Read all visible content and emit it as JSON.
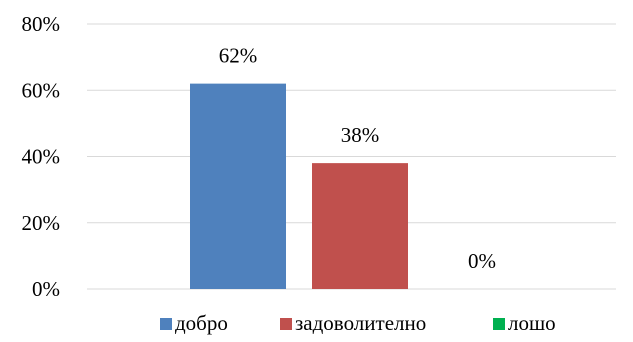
{
  "chart_data": {
    "type": "bar",
    "categories": [
      "добро",
      "задоволително",
      "лошо"
    ],
    "values": [
      62,
      38,
      0
    ],
    "data_labels": [
      "62%",
      "38%",
      "0%"
    ],
    "colors": [
      "#4f81bd",
      "#c0504d",
      "#00b050"
    ],
    "ylim": [
      0,
      80
    ],
    "yticks": [
      0,
      20,
      40,
      60,
      80
    ],
    "ytick_labels": [
      "0%",
      "20%",
      "40%",
      "60%",
      "80%"
    ],
    "title": "",
    "xlabel": "",
    "ylabel": "",
    "grid": true,
    "legend": "bottom",
    "legend_entries": [
      "добро",
      "задоволително",
      "лошо"
    ]
  }
}
